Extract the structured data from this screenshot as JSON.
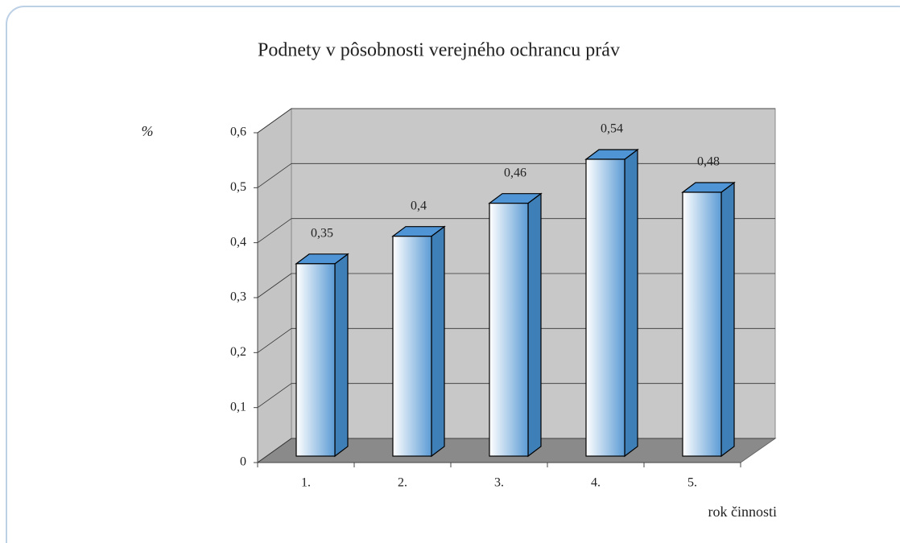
{
  "chart_data": {
    "type": "bar3d",
    "title": "Podnety v pôsobnosti verejného ochrancu práv",
    "y_label": "%",
    "x_label": "rok činnosti",
    "categories": [
      "1.",
      "2.",
      "3.",
      "4.",
      "5."
    ],
    "values": [
      0.35,
      0.4,
      0.46,
      0.54,
      0.48
    ],
    "value_labels": [
      "0,35",
      "0,4",
      "0,46",
      "0,54",
      "0,48"
    ],
    "color": "#5b9bd5",
    "ylim": [
      0,
      0.6
    ],
    "yticks": [
      0,
      {
        "value": 0.1,
        "label": "0,1"
      },
      {
        "value": 0.2,
        "label": "0,2"
      },
      {
        "value": 0.3,
        "label": "0,3"
      },
      {
        "value": 0.4,
        "label": "0,4"
      },
      {
        "value": 0.5,
        "label": "0,5"
      },
      {
        "value": 0.6,
        "label": "0,6"
      }
    ],
    "grid": true
  }
}
